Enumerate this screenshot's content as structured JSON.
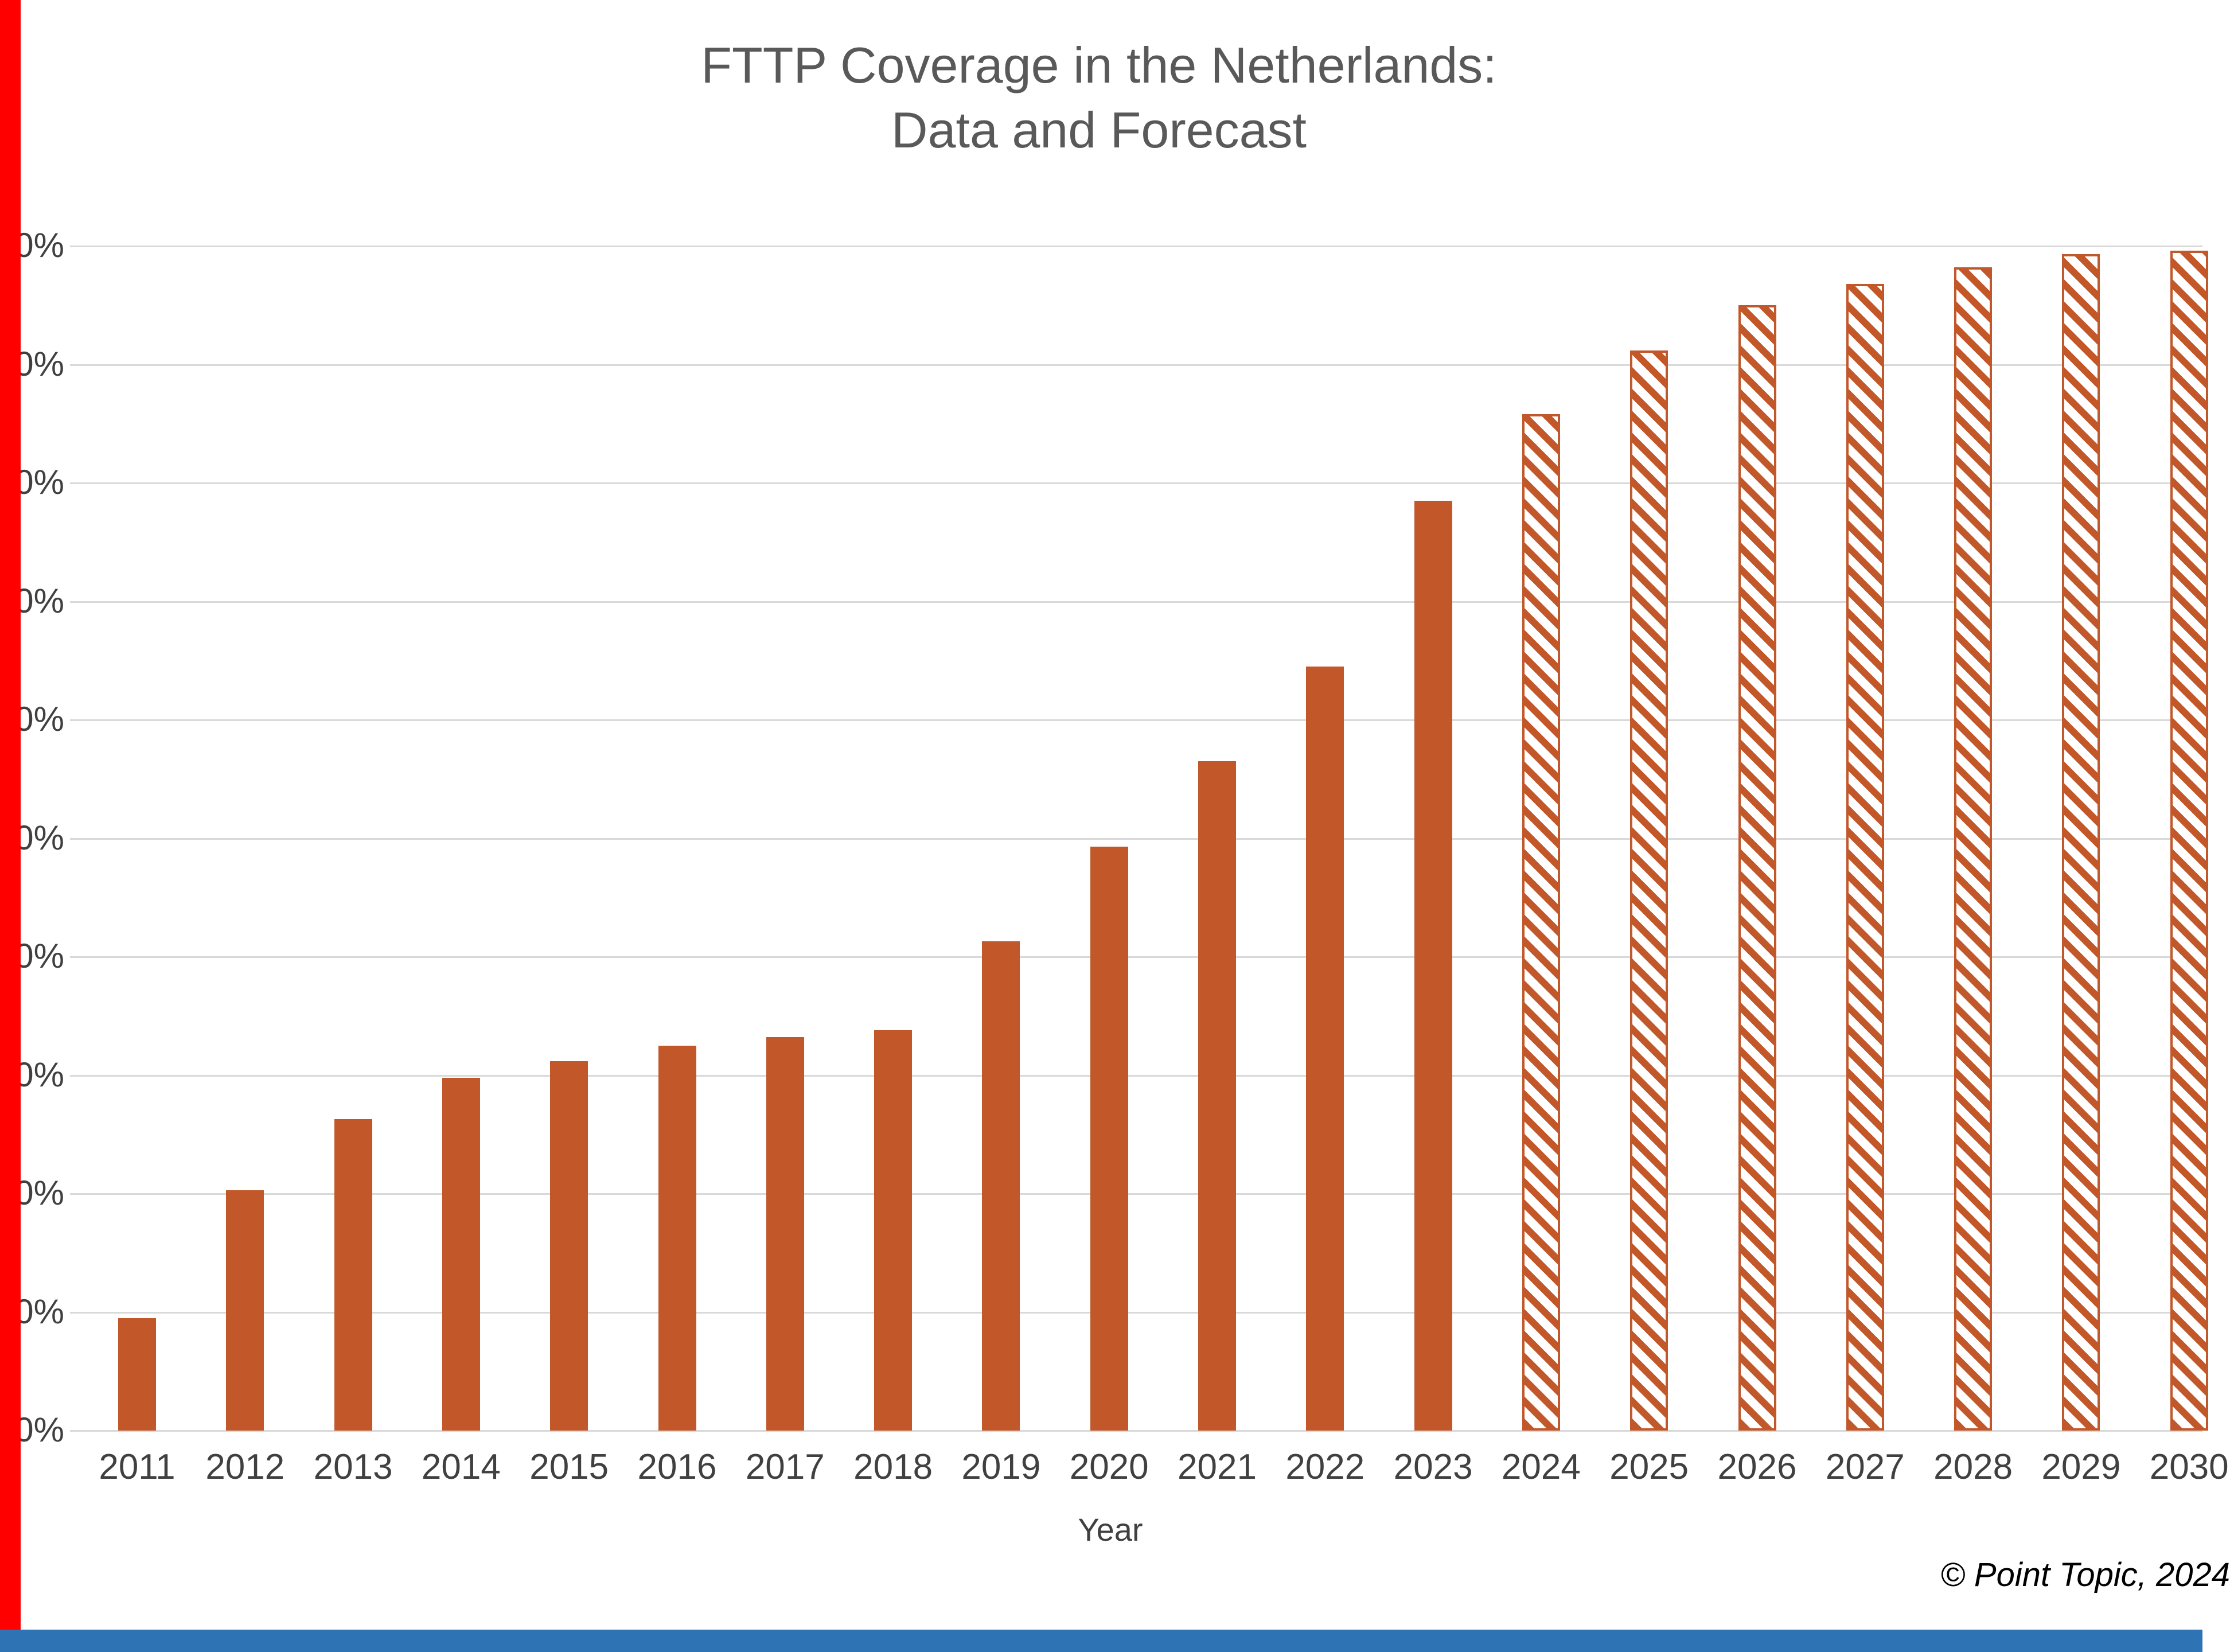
{
  "page": {
    "copyright": "© Point Topic, 2024"
  },
  "chart_data": {
    "type": "bar",
    "title_line1": "FTTP Coverage in the Netherlands:",
    "title_line2": "Data and Forecast",
    "xlabel": "Year",
    "ylabel": "",
    "ylim": [
      0,
      100
    ],
    "ytick_step": 10,
    "ytick_suffix": "%",
    "grid": true,
    "legend": "none",
    "categories": [
      "2011",
      "2012",
      "2013",
      "2014",
      "2015",
      "2016",
      "2017",
      "2018",
      "2019",
      "2020",
      "2021",
      "2022",
      "2023",
      "2024",
      "2025",
      "2026",
      "2027",
      "2028",
      "2029",
      "2030"
    ],
    "series": [
      {
        "name": "FTTP coverage",
        "values": [
          9.5,
          20.3,
          26.3,
          29.8,
          31.2,
          32.5,
          33.2,
          33.8,
          41.3,
          49.3,
          56.5,
          64.5,
          78.5,
          85.8,
          91.2,
          95.0,
          96.8,
          98.2,
          99.3,
          99.6
        ]
      }
    ],
    "forecast_start_category": "2024",
    "style_notes": "Solid bars are historical data; diagonally hatched bars are forecast",
    "colors": {
      "bar": "#c2572a",
      "gridline": "#d9d9d9",
      "title_text": "#595959",
      "axis_text": "#404040",
      "left_strip": "#ff0000",
      "bottom_strip": "#2e74b5"
    }
  }
}
